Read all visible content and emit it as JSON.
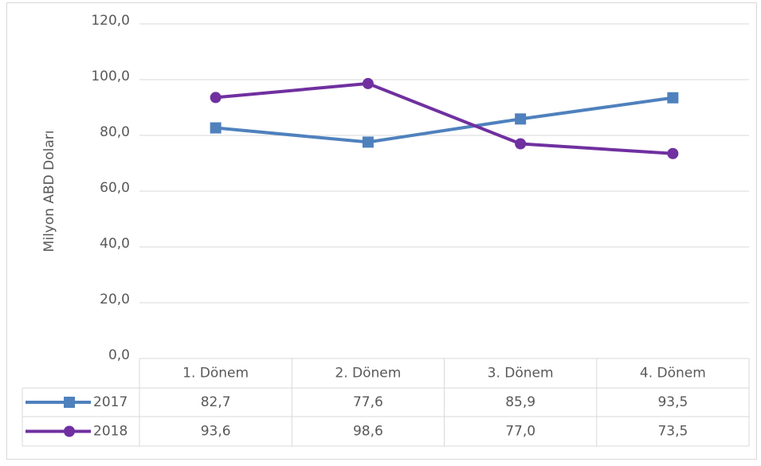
{
  "chart_data": {
    "type": "line",
    "y_label": "Milyon ABD Doları",
    "categories": [
      "1. Dönem",
      "2. Dönem",
      "3. Dönem",
      "4. Dönem"
    ],
    "series": [
      {
        "name": "2017",
        "color": "#4f81bd",
        "marker": "square",
        "values": [
          82.7,
          77.6,
          85.9,
          93.5
        ],
        "value_labels": [
          "82,7",
          "77,6",
          "85,9",
          "93,5"
        ]
      },
      {
        "name": "2018",
        "color": "#7030a0",
        "marker": "circle",
        "values": [
          93.6,
          98.6,
          77.0,
          73.5
        ],
        "value_labels": [
          "93,6",
          "98,6",
          "77,0",
          "73,5"
        ]
      }
    ],
    "ylim": [
      0,
      120
    ],
    "yticks": [
      {
        "value": 0,
        "label": "0,0"
      },
      {
        "value": 20,
        "label": "20,0"
      },
      {
        "value": 40,
        "label": "40,0"
      },
      {
        "value": 60,
        "label": "60,0"
      },
      {
        "value": 80,
        "label": "80,0"
      },
      {
        "value": 100,
        "label": "100,0"
      },
      {
        "value": 120,
        "label": "120,0"
      }
    ],
    "grid": true
  }
}
